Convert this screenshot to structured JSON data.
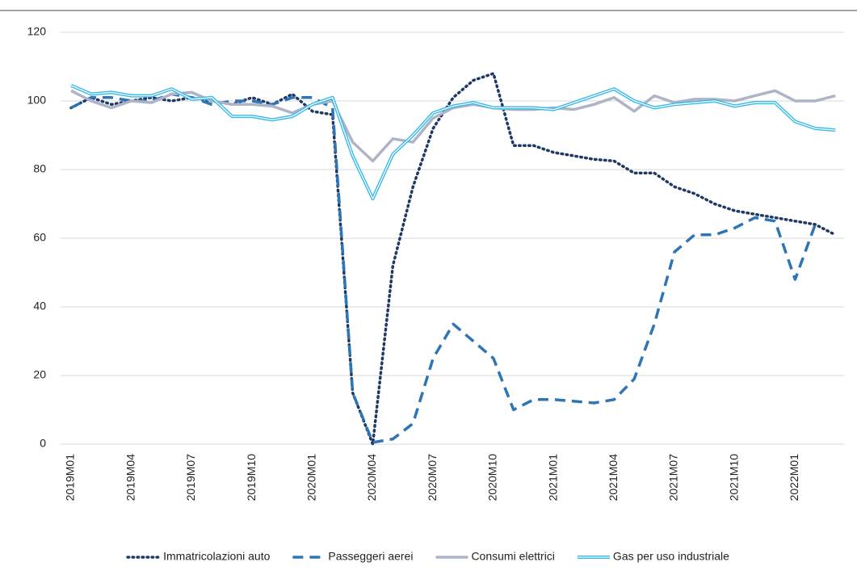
{
  "chart_data": {
    "type": "line",
    "categories": [
      "2019M01",
      null,
      null,
      "2019M04",
      null,
      null,
      "2019M07",
      null,
      null,
      "2019M10",
      null,
      null,
      "2020M01",
      null,
      null,
      "2020M04",
      null,
      null,
      "2020M07",
      null,
      null,
      "2020M10",
      null,
      null,
      "2021M01",
      null,
      null,
      "2021M04",
      null,
      null,
      "2021M07",
      null,
      null,
      "2021M10",
      null,
      null,
      "2022M01",
      null,
      null
    ],
    "series": [
      {
        "name": "Immatricolazioni auto",
        "color": "#1f3864",
        "style": "dotted",
        "values": [
          98,
          101,
          99,
          100,
          101,
          100,
          101,
          100,
          99,
          101,
          99,
          102,
          97,
          96,
          15,
          0,
          52,
          75,
          92,
          101,
          106,
          108,
          87,
          87,
          85,
          84,
          83,
          82.5,
          79,
          79,
          75,
          73,
          70,
          68,
          67,
          66,
          65,
          64,
          61
        ]
      },
      {
        "name": "Passeggeri aerei",
        "color": "#2e75b6",
        "style": "dashed",
        "values": [
          98,
          101,
          101,
          100,
          100,
          102,
          101,
          99,
          100,
          100,
          99,
          101,
          101,
          98,
          15,
          0.5,
          1.5,
          6,
          25,
          35,
          30,
          25,
          10,
          13,
          13,
          12.5,
          12,
          13,
          19,
          35,
          56,
          61,
          61,
          63,
          66,
          65,
          48,
          64,
          null
        ]
      },
      {
        "name": "Consumi elettrici",
        "color": "#aeb3c6",
        "style": "solid",
        "values": [
          103,
          100,
          98,
          100,
          99.5,
          102,
          102.5,
          100,
          99,
          99,
          98.5,
          96.5,
          99,
          100,
          88,
          82.5,
          89,
          88,
          95,
          98,
          99,
          98,
          97.5,
          97.5,
          98,
          97.5,
          99,
          101,
          97,
          101.5,
          99.5,
          100.5,
          100.5,
          100,
          101.5,
          103,
          100,
          100,
          101.5
        ]
      },
      {
        "name": "Gas per uso industriale",
        "color": "#33b8ea",
        "style": "double",
        "values": [
          104.5,
          102,
          102.5,
          101.5,
          101.5,
          103.5,
          100.5,
          101,
          95.5,
          95.5,
          94.5,
          95.5,
          99,
          101,
          84,
          71.5,
          84.5,
          90,
          96.5,
          98.5,
          99.5,
          98,
          98,
          98,
          97.5,
          99.5,
          101.5,
          103.5,
          100,
          98,
          99,
          99.5,
          100,
          98.5,
          99.5,
          99.5,
          94,
          92,
          91.5
        ]
      }
    ],
    "ylim": [
      0,
      120
    ],
    "yticks": [
      0,
      20,
      40,
      60,
      80,
      100,
      120
    ],
    "grid": true,
    "legend": "bottom"
  }
}
